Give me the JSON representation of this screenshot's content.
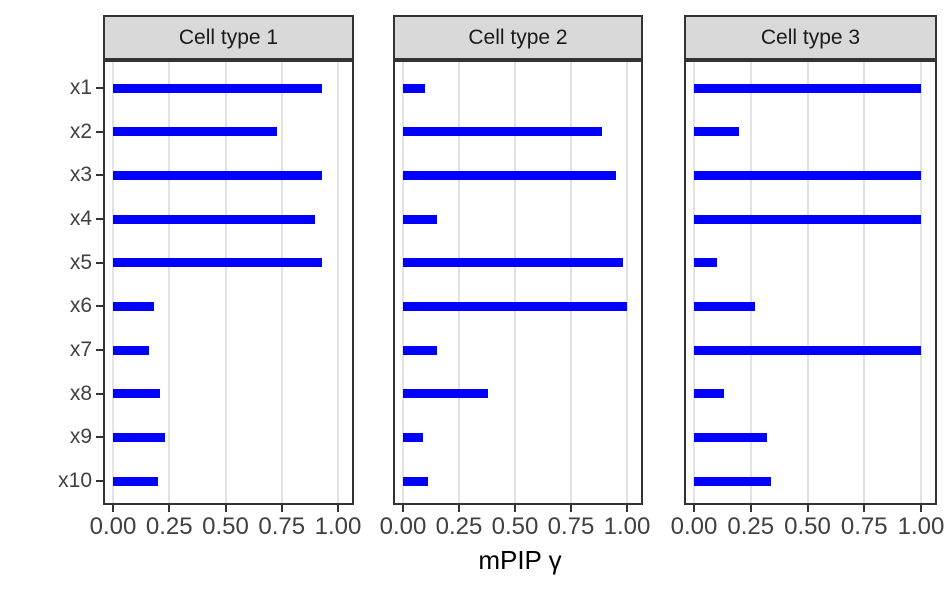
{
  "chart_data": {
    "type": "bar",
    "orientation": "horizontal",
    "title": "",
    "xlabel": "mPIP γ",
    "ylabel": "",
    "categories": [
      "x1",
      "x2",
      "x3",
      "x4",
      "x5",
      "x6",
      "x7",
      "x8",
      "x9",
      "x10"
    ],
    "x_ticks": [
      "0.00",
      "0.25",
      "0.50",
      "0.75",
      "1.00"
    ],
    "x_tick_values": [
      0,
      0.25,
      0.5,
      0.75,
      1.0
    ],
    "xlim": [
      0,
      1
    ],
    "grid": "vertical-major-only",
    "legend": "none",
    "facets": [
      {
        "name": "Cell type 1",
        "values": [
          0.93,
          0.73,
          0.93,
          0.9,
          0.93,
          0.18,
          0.16,
          0.21,
          0.23,
          0.2
        ]
      },
      {
        "name": "Cell type 2",
        "values": [
          0.1,
          0.89,
          0.95,
          0.15,
          0.98,
          1.0,
          0.15,
          0.38,
          0.09,
          0.11
        ]
      },
      {
        "name": "Cell type 3",
        "values": [
          1.0,
          0.2,
          1.0,
          1.0,
          0.1,
          0.27,
          1.0,
          0.13,
          0.32,
          0.34
        ]
      }
    ]
  },
  "style": {
    "bar_color": "#0000FF",
    "grid_color": "#E2E2E2",
    "panel_border_color": "#333333",
    "tick_color": "#333333",
    "strip_fill": "#D9D9D9",
    "strip_text_color": "#1A1A1A",
    "axis_text_color": "#404040",
    "title_color": "#000000",
    "background": "#FFFFFF"
  }
}
